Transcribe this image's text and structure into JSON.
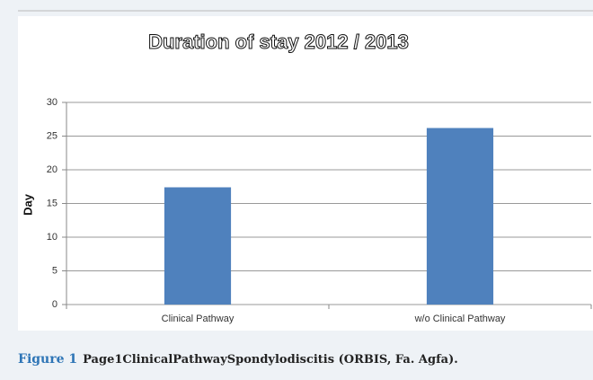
{
  "chart_data": {
    "type": "bar",
    "title": "Duration of stay  2012 / 2013",
    "y_label": "Day",
    "categories": [
      "Clinical Pathway",
      "w/o Clinical Pathway"
    ],
    "values": [
      17.4,
      26.2
    ],
    "color": "#4f81bd",
    "ylim": [
      0,
      30
    ],
    "yticks": [
      0,
      5,
      10,
      15,
      20,
      25,
      30
    ],
    "grid": true
  },
  "figure": {
    "label": "Figure 1",
    "caption": "Page1ClinicalPathwaySpondylodiscitis  (ORBIS, Fa. Agfa)."
  }
}
